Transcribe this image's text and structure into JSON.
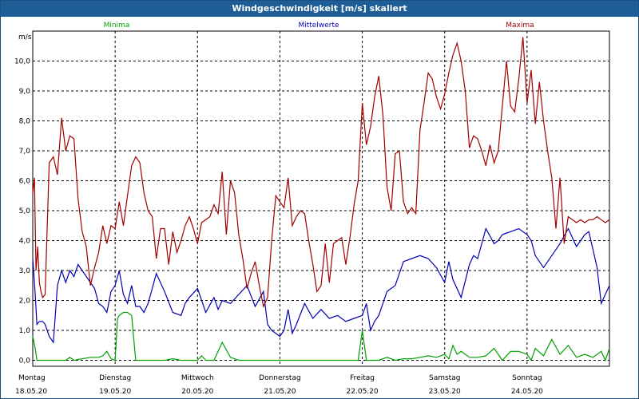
{
  "window": {
    "title": "Windgeschwindigkeit [m/s] skaliert"
  },
  "chart_data": {
    "type": "line",
    "title": "Windgeschwindigkeit [m/s] skaliert",
    "ylabel": "m/s",
    "ylim": [
      -0.2,
      11.0
    ],
    "yticks": [
      0.0,
      1.0,
      2.0,
      3.0,
      4.0,
      5.0,
      6.0,
      7.0,
      8.0,
      9.0,
      10.0
    ],
    "ytick_labels": [
      "0,0",
      "1,0",
      "2,0",
      "3,0",
      "4,0",
      "5,0",
      "6,0",
      "7,0",
      "8,0",
      "9,0",
      "10,0"
    ],
    "xlim": [
      0,
      7
    ],
    "day_ticks": [
      {
        "day": "Montag",
        "date": "18.05.20"
      },
      {
        "day": "Dienstag",
        "date": "19.05.20"
      },
      {
        "day": "Mittwoch",
        "date": "20.05.20"
      },
      {
        "day": "Donnerstag",
        "date": "21.05.20"
      },
      {
        "day": "Freitag",
        "date": "22.05.20"
      },
      {
        "day": "Samstag",
        "date": "23.05.20"
      },
      {
        "day": "Sonntag",
        "date": "24.05.20"
      }
    ],
    "grid": true,
    "legend_position": "top",
    "series": [
      {
        "name": "Minima",
        "color": "#00a000",
        "x": [
          0,
          0.03,
          0.05,
          0.1,
          0.2,
          0.3,
          0.4,
          0.45,
          0.5,
          0.6,
          0.7,
          0.75,
          0.8,
          0.85,
          0.9,
          0.95,
          1.0,
          1.03,
          1.05,
          1.1,
          1.15,
          1.2,
          1.25,
          1.3,
          1.4,
          1.5,
          1.6,
          1.7,
          1.8,
          1.9,
          2.0,
          2.05,
          2.1,
          2.2,
          2.3,
          2.4,
          2.5,
          2.6,
          2.8,
          3.0,
          3.2,
          3.4,
          3.6,
          3.8,
          3.9,
          3.95,
          4.0,
          4.05,
          4.1,
          4.2,
          4.3,
          4.4,
          4.5,
          4.6,
          4.7,
          4.8,
          4.9,
          5.0,
          5.05,
          5.1,
          5.15,
          5.2,
          5.3,
          5.4,
          5.5,
          5.6,
          5.65,
          5.7,
          5.8,
          5.9,
          6.0,
          6.05,
          6.1,
          6.2,
          6.3,
          6.4,
          6.5,
          6.6,
          6.7,
          6.8,
          6.9,
          6.95,
          7.0
        ],
        "values": [
          0.8,
          0.4,
          0.0,
          0.0,
          0.0,
          0.0,
          0.0,
          0.1,
          0.0,
          0.05,
          0.1,
          0.1,
          0.1,
          0.15,
          0.3,
          0.05,
          0.0,
          1.4,
          1.5,
          1.6,
          1.6,
          1.5,
          0.0,
          0.0,
          0.0,
          0.0,
          0.0,
          0.05,
          0.0,
          0.0,
          0.0,
          0.15,
          0.0,
          0.0,
          0.6,
          0.1,
          0.0,
          0.0,
          0.0,
          0.0,
          0.0,
          0.0,
          0.0,
          0.0,
          0.0,
          0.0,
          1.0,
          0.0,
          0.0,
          0.0,
          0.1,
          0.0,
          0.05,
          0.05,
          0.1,
          0.15,
          0.1,
          0.2,
          0.05,
          0.5,
          0.2,
          0.3,
          0.1,
          0.1,
          0.15,
          0.4,
          0.2,
          0.0,
          0.3,
          0.3,
          0.2,
          0.0,
          0.4,
          0.15,
          0.7,
          0.2,
          0.5,
          0.1,
          0.2,
          0.1,
          0.3,
          0.0,
          0.4
        ]
      },
      {
        "name": "Mittelwerte",
        "color": "#0000b4",
        "x": [
          0,
          0.03,
          0.05,
          0.08,
          0.1,
          0.12,
          0.15,
          0.2,
          0.25,
          0.3,
          0.35,
          0.4,
          0.45,
          0.5,
          0.55,
          0.6,
          0.7,
          0.75,
          0.8,
          0.85,
          0.9,
          0.95,
          1.0,
          1.05,
          1.1,
          1.15,
          1.2,
          1.25,
          1.3,
          1.35,
          1.4,
          1.45,
          1.5,
          1.6,
          1.7,
          1.8,
          1.85,
          1.9,
          2.0,
          2.1,
          2.2,
          2.25,
          2.3,
          2.4,
          2.5,
          2.6,
          2.7,
          2.8,
          2.85,
          2.9,
          3.0,
          3.05,
          3.1,
          3.15,
          3.2,
          3.3,
          3.4,
          3.5,
          3.6,
          3.7,
          3.8,
          3.9,
          4.0,
          4.05,
          4.1,
          4.15,
          4.2,
          4.3,
          4.4,
          4.5,
          4.6,
          4.7,
          4.8,
          4.9,
          5.0,
          5.05,
          5.1,
          5.2,
          5.3,
          5.35,
          5.4,
          5.5,
          5.6,
          5.65,
          5.7,
          5.8,
          5.9,
          6.0,
          6.05,
          6.1,
          6.2,
          6.3,
          6.4,
          6.5,
          6.6,
          6.7,
          6.75,
          6.8,
          6.85,
          6.9,
          6.95,
          7.0
        ],
        "values": [
          3.4,
          2.2,
          1.2,
          1.3,
          1.3,
          1.3,
          1.2,
          0.8,
          0.6,
          2.5,
          3.0,
          2.6,
          3.0,
          2.8,
          3.2,
          3.0,
          2.6,
          2.4,
          1.9,
          1.8,
          1.6,
          2.3,
          2.5,
          3.0,
          2.2,
          1.9,
          2.5,
          1.8,
          1.8,
          1.6,
          1.9,
          2.4,
          2.9,
          2.3,
          1.6,
          1.5,
          1.9,
          2.1,
          2.4,
          1.6,
          2.1,
          1.7,
          2.0,
          1.9,
          2.2,
          2.5,
          1.8,
          2.3,
          1.2,
          1.0,
          0.8,
          1.0,
          1.7,
          0.9,
          1.2,
          1.9,
          1.4,
          1.7,
          1.4,
          1.5,
          1.3,
          1.4,
          1.5,
          1.9,
          1.0,
          1.3,
          1.5,
          2.3,
          2.5,
          3.3,
          3.4,
          3.5,
          3.4,
          3.1,
          2.6,
          3.3,
          2.7,
          2.1,
          3.2,
          3.5,
          3.4,
          4.4,
          3.9,
          4.0,
          4.2,
          4.3,
          4.4,
          4.2,
          4.0,
          3.5,
          3.1,
          3.5,
          3.9,
          4.4,
          3.8,
          4.2,
          4.3,
          3.7,
          3.1,
          1.9,
          2.2,
          2.5
        ]
      },
      {
        "name": "Maxima",
        "color": "#a00000",
        "x": [
          0,
          0.02,
          0.04,
          0.06,
          0.08,
          0.1,
          0.12,
          0.15,
          0.2,
          0.25,
          0.3,
          0.35,
          0.4,
          0.45,
          0.5,
          0.55,
          0.6,
          0.65,
          0.7,
          0.75,
          0.8,
          0.85,
          0.9,
          0.95,
          1.0,
          1.05,
          1.1,
          1.15,
          1.2,
          1.25,
          1.3,
          1.35,
          1.4,
          1.45,
          1.5,
          1.55,
          1.6,
          1.65,
          1.7,
          1.75,
          1.8,
          1.85,
          1.9,
          1.95,
          2.0,
          2.05,
          2.1,
          2.15,
          2.2,
          2.25,
          2.3,
          2.35,
          2.4,
          2.45,
          2.5,
          2.55,
          2.6,
          2.65,
          2.7,
          2.75,
          2.8,
          2.85,
          2.9,
          2.95,
          3.0,
          3.05,
          3.1,
          3.15,
          3.2,
          3.25,
          3.3,
          3.35,
          3.4,
          3.45,
          3.5,
          3.55,
          3.6,
          3.65,
          3.7,
          3.75,
          3.8,
          3.85,
          3.9,
          3.95,
          4.0,
          4.05,
          4.1,
          4.15,
          4.2,
          4.25,
          4.3,
          4.35,
          4.4,
          4.45,
          4.5,
          4.55,
          4.6,
          4.65,
          4.7,
          4.75,
          4.8,
          4.85,
          4.9,
          4.95,
          5.0,
          5.05,
          5.1,
          5.15,
          5.2,
          5.25,
          5.3,
          5.35,
          5.4,
          5.45,
          5.5,
          5.55,
          5.6,
          5.65,
          5.7,
          5.75,
          5.8,
          5.85,
          5.9,
          5.95,
          6.0,
          6.05,
          6.1,
          6.15,
          6.2,
          6.25,
          6.3,
          6.35,
          6.4,
          6.45,
          6.5,
          6.55,
          6.6,
          6.65,
          6.7,
          6.75,
          6.8,
          6.85,
          6.9,
          6.95,
          7.0
        ],
        "values": [
          5.6,
          6.1,
          3.0,
          3.8,
          2.6,
          2.3,
          2.1,
          2.2,
          6.6,
          6.8,
          6.2,
          8.1,
          7.0,
          7.5,
          7.4,
          5.4,
          4.3,
          3.8,
          2.5,
          3.1,
          3.6,
          4.5,
          3.9,
          4.5,
          4.4,
          5.3,
          4.5,
          5.5,
          6.5,
          6.8,
          6.6,
          5.6,
          5.0,
          4.8,
          3.4,
          4.4,
          4.4,
          3.2,
          4.3,
          3.6,
          4.0,
          4.5,
          4.8,
          4.4,
          3.9,
          4.6,
          4.7,
          4.8,
          5.2,
          4.9,
          6.3,
          4.2,
          6.0,
          5.6,
          4.2,
          3.4,
          2.4,
          2.9,
          3.3,
          2.5,
          1.8,
          2.1,
          4.0,
          5.5,
          5.3,
          5.1,
          6.1,
          4.5,
          4.8,
          5.0,
          4.9,
          4.0,
          3.2,
          2.3,
          2.5,
          3.9,
          2.6,
          3.9,
          4.0,
          4.1,
          3.2,
          4.1,
          5.2,
          6.0,
          8.6,
          7.2,
          7.8,
          8.8,
          9.5,
          8.2,
          5.8,
          5.0,
          6.9,
          7.0,
          5.3,
          4.9,
          5.1,
          4.9,
          7.7,
          8.6,
          9.6,
          9.4,
          8.8,
          8.4,
          8.9,
          9.6,
          10.2,
          10.6,
          10.0,
          9.0,
          7.1,
          7.5,
          7.4,
          7.0,
          6.5,
          7.2,
          6.6,
          7.0,
          8.5,
          10.0,
          8.5,
          8.3,
          9.4,
          10.8,
          8.6,
          9.7,
          7.9,
          9.3,
          8.0,
          7.0,
          6.1,
          4.4,
          6.1,
          3.9,
          4.8,
          4.7,
          4.6,
          4.7,
          4.6,
          4.7,
          4.7,
          4.8,
          4.7,
          4.6,
          4.7
        ]
      }
    ]
  }
}
